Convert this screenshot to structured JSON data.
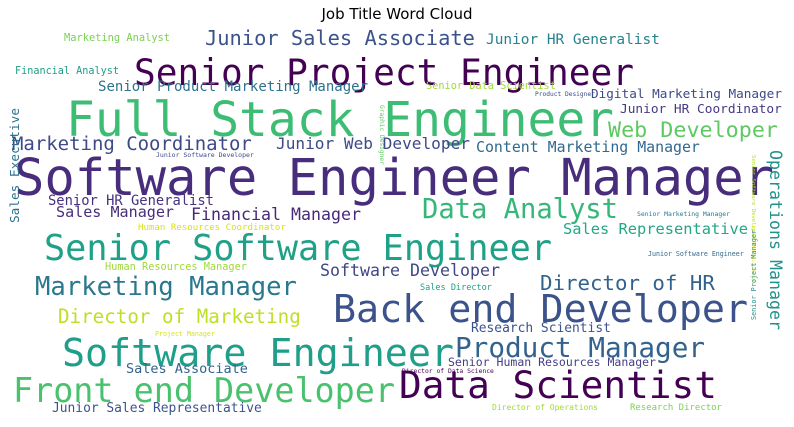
{
  "chart_data": {
    "type": "wordcloud",
    "title": "Job Title Word Cloud",
    "colormap": "viridis",
    "words": [
      {
        "text": "Software Engineer Manager",
        "color": "#472d7b"
      },
      {
        "text": "Senior Project Engineer",
        "color": "#440154"
      },
      {
        "text": "Full Stack Engineer",
        "color": "#3dbc74"
      },
      {
        "text": "Senior Software Engineer",
        "color": "#1fa187"
      },
      {
        "text": "Back end Developer",
        "color": "#3b528b"
      },
      {
        "text": "Software Engineer",
        "color": "#1f9e89"
      },
      {
        "text": "Data Scientist",
        "color": "#440154"
      },
      {
        "text": "Front end Developer",
        "color": "#4ac16d"
      },
      {
        "text": "Marketing Manager",
        "color": "#2a788e"
      },
      {
        "text": "Product Manager",
        "color": "#33638d"
      },
      {
        "text": "Data Analyst",
        "color": "#35b779"
      },
      {
        "text": "Director of Marketing",
        "color": "#bddf26"
      },
      {
        "text": "Director of HR",
        "color": "#33638d"
      },
      {
        "text": "Marketing Coordinator",
        "color": "#3e4989"
      },
      {
        "text": "Web Developer",
        "color": "#5ec962"
      },
      {
        "text": "Financial Manager",
        "color": "#482878"
      },
      {
        "text": "Junior Sales Associate",
        "color": "#3b528b"
      },
      {
        "text": "Content Marketing Manager",
        "color": "#31688e"
      },
      {
        "text": "Operations Manager",
        "color": "#21918c"
      },
      {
        "text": "Sales Representative",
        "color": "#22a884"
      },
      {
        "text": "Junior HR Generalist",
        "color": "#26828e"
      },
      {
        "text": "Digital Marketing Manager",
        "color": "#3e4989"
      },
      {
        "text": "Senior Product Marketing Manager",
        "color": "#2c728e"
      },
      {
        "text": "Software Developer",
        "color": "#404688"
      },
      {
        "text": "Junior HR Coordinator",
        "color": "#443983"
      },
      {
        "text": "Junior Web Developer",
        "color": "#3e4989"
      },
      {
        "text": "Sales Manager",
        "color": "#472d7b"
      },
      {
        "text": "Senior HR Generalist",
        "color": "#46327e"
      },
      {
        "text": "Sales Associate",
        "color": "#33638d"
      },
      {
        "text": "Junior Sales Representative",
        "color": "#3b528b"
      },
      {
        "text": "Research Scientist",
        "color": "#3b528b"
      },
      {
        "text": "Senior Human Resources Manager",
        "color": "#433e85"
      },
      {
        "text": "Sales Executive",
        "color": "#2c728e"
      },
      {
        "text": "Marketing Analyst",
        "color": "#7ad151"
      },
      {
        "text": "Financial Analyst",
        "color": "#1f9e89"
      },
      {
        "text": "Senior Data Scientist",
        "color": "#a0da39"
      },
      {
        "text": "Sales Director",
        "color": "#1fa187"
      },
      {
        "text": "Human Resources Manager",
        "color": "#a0da39"
      },
      {
        "text": "Human Resources Coordinator",
        "color": "#d8e219"
      },
      {
        "text": "Junior Software Developer",
        "color": "#3e4989"
      },
      {
        "text": "Junior Software Engineer",
        "color": "#31688e"
      },
      {
        "text": "Senior Marketing Manager",
        "color": "#2a788e"
      },
      {
        "text": "Senior Software Developer",
        "color": "#b5de2b"
      },
      {
        "text": "Junior Marketing Manager",
        "color": "#fde725"
      },
      {
        "text": "Senior Project Manager",
        "color": "#21918c"
      },
      {
        "text": "Project Manager",
        "color": "#d8e219"
      },
      {
        "text": "Product Designer",
        "color": "#3e4989"
      },
      {
        "text": "Graphic Designer",
        "color": "#5ec962"
      },
      {
        "text": "Director of Data Science",
        "color": "#440154"
      },
      {
        "text": "Director of Operations",
        "color": "#a0da39"
      },
      {
        "text": "Research Director",
        "color": "#7ad151"
      }
    ]
  }
}
